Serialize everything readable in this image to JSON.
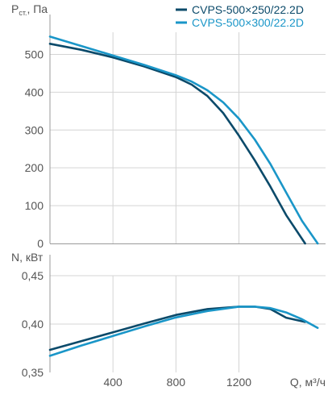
{
  "chart_data": [
    {
      "type": "line",
      "ylabel": "P",
      "ylabel_sub": "ст.",
      "ylabel_unit": ", Па",
      "ylim": [
        0,
        550
      ],
      "yticks": [
        "0",
        "100",
        "200",
        "300",
        "400",
        "500"
      ],
      "xlim": [
        0,
        1750
      ],
      "grid": true,
      "legend_position": "top-right",
      "series": [
        {
          "name": "CVPS-500×250/22.2D",
          "color": "#0b4a6a",
          "x": [
            0,
            200,
            400,
            600,
            800,
            900,
            1000,
            1100,
            1200,
            1300,
            1400,
            1500,
            1620
          ],
          "y": [
            528,
            512,
            492,
            468,
            440,
            420,
            390,
            345,
            285,
            220,
            150,
            75,
            0
          ]
        },
        {
          "name": "CVPS-500×300/22.2D",
          "color": "#1a96c8",
          "x": [
            0,
            200,
            400,
            600,
            800,
            900,
            1000,
            1100,
            1200,
            1300,
            1400,
            1500,
            1600,
            1700
          ],
          "y": [
            547,
            522,
            497,
            472,
            445,
            428,
            405,
            373,
            330,
            275,
            210,
            135,
            60,
            0
          ]
        }
      ]
    },
    {
      "type": "line",
      "ylabel": "N, кВт",
      "ylim": [
        0.35,
        0.45
      ],
      "yticks": [
        "0,35",
        "0,40",
        "0,45"
      ],
      "xlabel": "Q, м³/ч",
      "xlim": [
        0,
        1750
      ],
      "xticks": [
        "400",
        "800",
        "1200"
      ],
      "grid": true,
      "series": [
        {
          "name": "CVPS-500×250/22.2D",
          "color": "#0b4a6a",
          "x": [
            0,
            200,
            400,
            600,
            800,
            1000,
            1200,
            1300,
            1400,
            1500,
            1620
          ],
          "y": [
            0.3733,
            0.3824,
            0.3915,
            0.4006,
            0.4094,
            0.4155,
            0.418,
            0.418,
            0.4155,
            0.4066,
            0.4022
          ]
        },
        {
          "name": "CVPS-500×300/22.2D",
          "color": "#1a96c8",
          "x": [
            0,
            200,
            400,
            600,
            800,
            1000,
            1200,
            1300,
            1400,
            1500,
            1600,
            1700
          ],
          "y": [
            0.3672,
            0.3778,
            0.3877,
            0.3976,
            0.4068,
            0.4135,
            0.418,
            0.418,
            0.4165,
            0.412,
            0.405,
            0.396
          ]
        }
      ]
    }
  ]
}
